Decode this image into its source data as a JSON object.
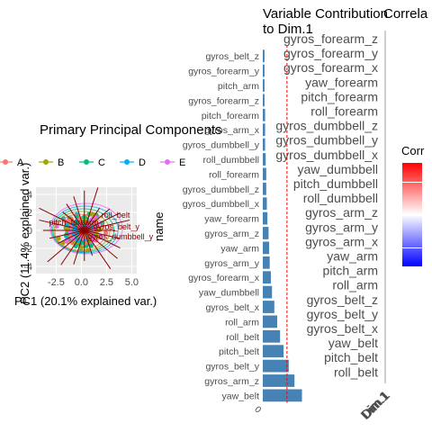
{
  "colors": {
    "panel_bg": "#ebebeb",
    "bar": "#4682b4",
    "ref_line": "#ff0000",
    "arrow": "#8b0000",
    "heat_high": "#ff0000",
    "heat_mid": "#ffffff",
    "heat_low": "#0000ff"
  },
  "pca_panel": {
    "title": "Primary Principal Components",
    "x_label": "PC1 (20.1% explained var.)",
    "y_label": "PC2 (11.4% explained var.)",
    "legend": [
      {
        "label": "A",
        "color": "#f8766d"
      },
      {
        "label": "B",
        "color": "#a3a500"
      },
      {
        "label": "C",
        "color": "#00bf7d"
      },
      {
        "label": "D",
        "color": "#00b0f6"
      },
      {
        "label": "E",
        "color": "#e76bf3"
      }
    ],
    "x_ticks": [
      "-2.5",
      "0.0",
      "2.5",
      "5.0"
    ],
    "y_ticks": [
      "4",
      "2",
      "0",
      "-2",
      "-4"
    ],
    "arrow_labels": [
      "gyros_belt_y",
      "gyros_dumbbell_y",
      "pitch_forearm",
      "roll_belt"
    ]
  },
  "contrib_panel": {
    "title_line1": "Variable Contribution",
    "title_line2": "to Dim.1",
    "y_axis_title": "name"
  },
  "corr_panel": {
    "title": "Correla",
    "labels": [
      "gyros_forearm_z",
      "gyros_forearm_y",
      "gyros_forearm_x",
      "yaw_forearm",
      "pitch_forearm",
      "roll_forearm",
      "gyros_dumbbell_z",
      "gyros_dumbbell_y",
      "gyros_dumbbell_x",
      "yaw_dumbbell",
      "pitch_dumbbell",
      "roll_dumbbell",
      "gyros_arm_z",
      "gyros_arm_y",
      "gyros_arm_x",
      "yaw_arm",
      "pitch_arm",
      "roll_arm",
      "gyros_belt_z",
      "gyros_belt_y",
      "gyros_belt_x",
      "yaw_belt",
      "pitch_belt",
      "roll_belt"
    ],
    "x_label": "Dim.1",
    "legend_title": "Corr"
  },
  "chart_data": [
    {
      "type": "scatter",
      "title": "Primary Principal Components",
      "xlabel": "PC1 (20.1% explained var.)",
      "ylabel": "PC2 (11.4% explained var.)",
      "legend": [
        "A",
        "B",
        "C",
        "D",
        "E"
      ],
      "xlim": [
        -4.5,
        5.5
      ],
      "ylim": [
        -4.8,
        4.8
      ],
      "x_ticks": [
        -2.5,
        0.0,
        2.5,
        5.0
      ],
      "y_ticks": [
        -4,
        -2,
        0,
        2,
        4
      ]
    },
    {
      "type": "bar",
      "title": "Variable Contribution to Dim.1",
      "ylabel": "name",
      "categories": [
        "gyros_belt_z",
        "gyros_forearm_y",
        "pitch_arm",
        "gyros_forearm_z",
        "pitch_forearm",
        "gyros_arm_x",
        "gyros_dumbbell_y",
        "roll_dumbbell",
        "roll_forearm",
        "gyros_dumbbell_z",
        "gyros_dumbbell_x",
        "yaw_forearm",
        "gyros_arm_z",
        "yaw_arm",
        "gyros_arm_y",
        "gyros_forearm_x",
        "yaw_dumbbell",
        "gyros_belt_x",
        "roll_arm",
        "roll_belt",
        "pitch_belt",
        "gyros_belt_y",
        "gyros_arm_z",
        "yaw_belt"
      ],
      "values": [
        0.3,
        0.3,
        0.3,
        0.3,
        0.4,
        0.4,
        0.4,
        0.5,
        0.6,
        0.6,
        0.7,
        0.8,
        1.0,
        1.1,
        1.2,
        1.4,
        1.6,
        2.0,
        2.5,
        3.0,
        3.6,
        4.5,
        5.5,
        6.8
      ],
      "reference_line": 4.2,
      "x_ticks": [
        "0",
        "10"
      ],
      "xlim": [
        0,
        10
      ]
    },
    {
      "type": "heatmap",
      "title": "Correla",
      "x": [
        "Dim.1"
      ],
      "legend_title": "Corr"
    }
  ]
}
